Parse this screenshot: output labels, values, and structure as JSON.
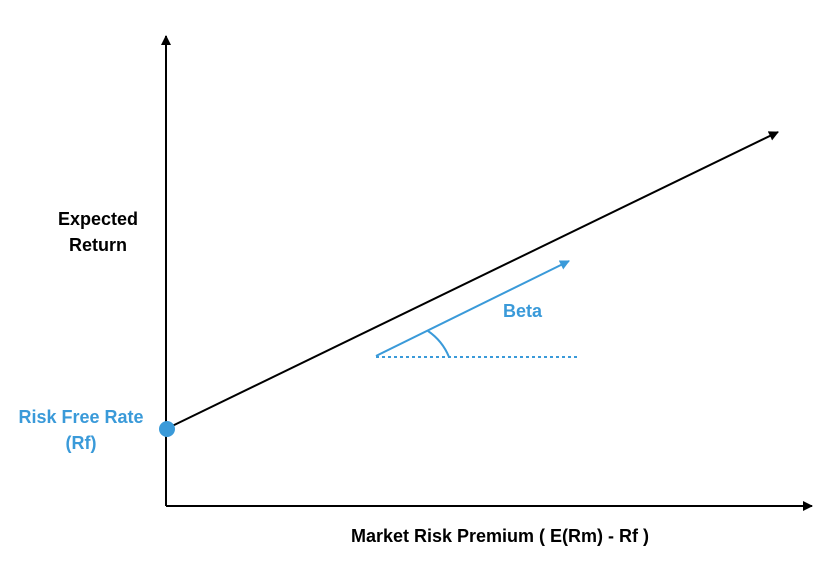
{
  "y_axis": {
    "label_line1": "Expected",
    "label_line2": "Return"
  },
  "x_axis": {
    "label": "Market Risk Premium ( E(Rm) - Rf )"
  },
  "risk_free": {
    "label_line1": "Risk Free Rate",
    "label_line2": "(Rf)"
  },
  "beta": {
    "label": "Beta"
  },
  "colors": {
    "axis": "#000000",
    "accent": "#3a9ad9",
    "background": "#ffffff"
  }
}
